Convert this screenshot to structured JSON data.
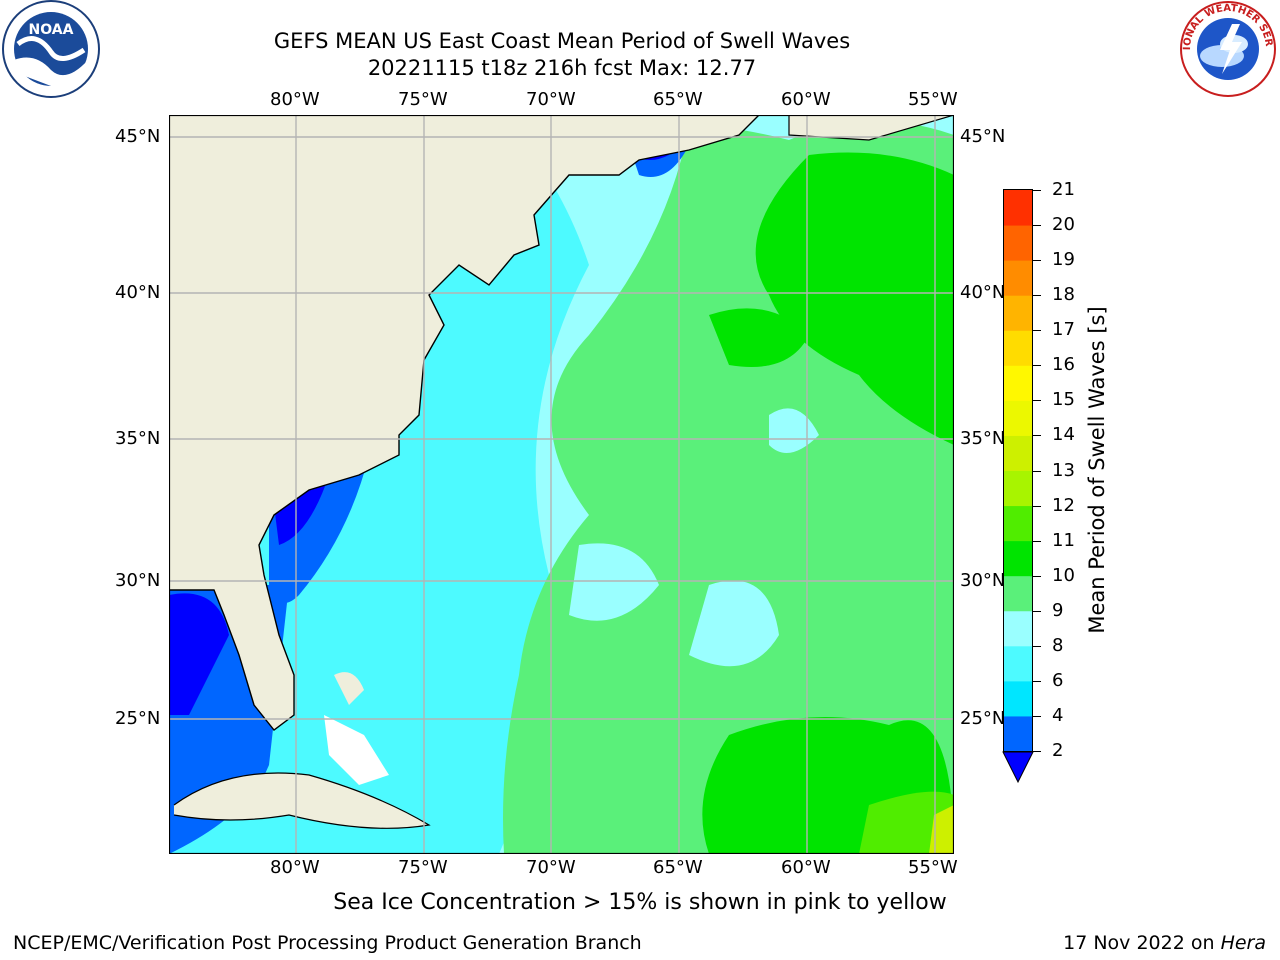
{
  "header": {
    "title_line1": "GEFS MEAN US East Coast Mean Period of Swell Waves",
    "title_line2": "20221115 t18z 216h fcst   Max: 12.77"
  },
  "logos": {
    "left_name": "noaa-logo",
    "left_text": "NOAA",
    "right_name": "nws-logo",
    "right_text": "NATIONAL WEATHER SERVICE"
  },
  "map": {
    "lon_labels": [
      "80°W",
      "75°W",
      "70°W",
      "65°W",
      "60°W",
      "55°W"
    ],
    "lat_labels": [
      "45°N",
      "40°N",
      "35°N",
      "30°N",
      "25°N"
    ],
    "extent": {
      "lon_min": -85,
      "lon_max": -54.2,
      "lat_min": 20.3,
      "lat_max": 45.9
    },
    "colors": {
      "land": "#efeedc",
      "grid": "#b4b4b4",
      "coast": "#000000"
    }
  },
  "colorbar": {
    "label": "Mean Period of Swell Waves [s]",
    "ticks": [
      "2",
      "4",
      "6",
      "8",
      "9",
      "10",
      "11",
      "12",
      "13",
      "14",
      "15",
      "16",
      "17",
      "18",
      "19",
      "20",
      "21"
    ],
    "colors": [
      "#0066ff",
      "#00e6ff",
      "#4dfaff",
      "#9affff",
      "#5af07a",
      "#00e400",
      "#50ed00",
      "#a8f400",
      "#cdf000",
      "#ecf800",
      "#fff800",
      "#ffdc00",
      "#ffb400",
      "#ff8c00",
      "#ff6400",
      "#ff3000"
    ],
    "extend_color": "#0000ff"
  },
  "footer": {
    "note": "Sea Ice Concentration > 15% is shown in pink to yellow",
    "left": "NCEP/EMC/Verification Post Processing Product Generation Branch",
    "right_prefix": "17 Nov 2022 on ",
    "right_host": "Hera"
  }
}
